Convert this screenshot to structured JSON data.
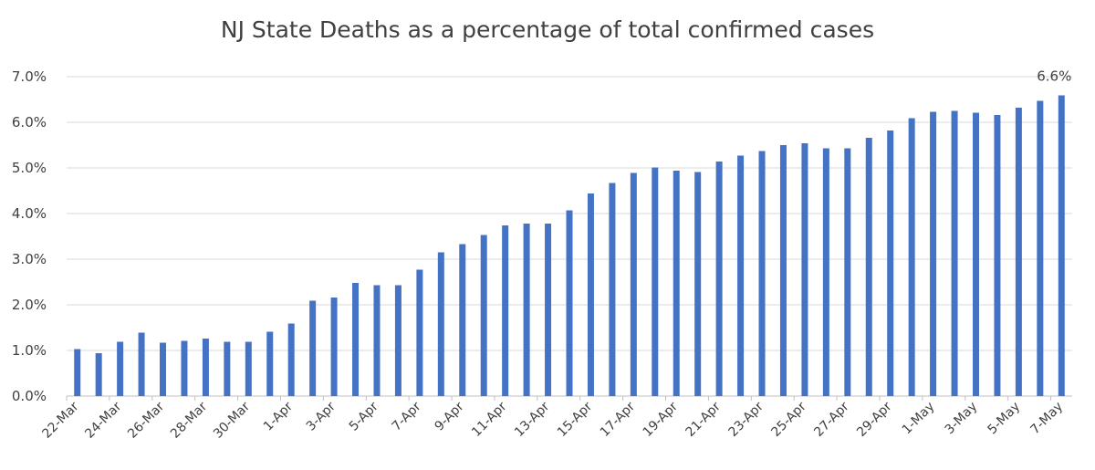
{
  "chart_data": {
    "type": "bar",
    "title": "NJ State Deaths as a percentage of total confirmed cases",
    "xlabel": "",
    "ylabel": "",
    "ylim": [
      0,
      7
    ],
    "yticks": [
      "0.0%",
      "1.0%",
      "2.0%",
      "3.0%",
      "4.0%",
      "5.0%",
      "6.0%",
      "7.0%"
    ],
    "grid": true,
    "bar_color": "#4472c4",
    "categories": [
      "22-Mar",
      "23-Mar",
      "24-Mar",
      "25-Mar",
      "26-Mar",
      "27-Mar",
      "28-Mar",
      "29-Mar",
      "30-Mar",
      "31-Mar",
      "1-Apr",
      "2-Apr",
      "3-Apr",
      "4-Apr",
      "5-Apr",
      "6-Apr",
      "7-Apr",
      "8-Apr",
      "9-Apr",
      "10-Apr",
      "11-Apr",
      "12-Apr",
      "13-Apr",
      "14-Apr",
      "15-Apr",
      "16-Apr",
      "17-Apr",
      "18-Apr",
      "19-Apr",
      "20-Apr",
      "21-Apr",
      "22-Apr",
      "23-Apr",
      "24-Apr",
      "25-Apr",
      "26-Apr",
      "27-Apr",
      "28-Apr",
      "29-Apr",
      "30-Apr",
      "1-May",
      "2-May",
      "3-May",
      "4-May",
      "5-May",
      "6-May",
      "7-May"
    ],
    "tick_labels": [
      "22-Mar",
      "24-Mar",
      "26-Mar",
      "28-Mar",
      "30-Mar",
      "1-Apr",
      "3-Apr",
      "5-Apr",
      "7-Apr",
      "9-Apr",
      "11-Apr",
      "13-Apr",
      "15-Apr",
      "17-Apr",
      "19-Apr",
      "21-Apr",
      "23-Apr",
      "25-Apr",
      "27-Apr",
      "29-Apr",
      "1-May",
      "3-May",
      "5-May",
      "7-May"
    ],
    "values": [
      1.03,
      0.94,
      1.19,
      1.39,
      1.17,
      1.21,
      1.26,
      1.19,
      1.19,
      1.41,
      1.59,
      2.09,
      2.16,
      2.48,
      2.43,
      2.43,
      2.77,
      3.15,
      3.33,
      3.53,
      3.74,
      3.78,
      3.78,
      4.07,
      4.44,
      4.67,
      4.89,
      5.01,
      4.94,
      4.91,
      5.14,
      5.27,
      5.37,
      5.5,
      5.54,
      5.43,
      5.43,
      5.66,
      5.82,
      6.09,
      6.23,
      6.25,
      6.21,
      6.16,
      6.32,
      6.47,
      6.59
    ],
    "annotations": [
      {
        "category": "7-May",
        "text": "6.6%"
      }
    ]
  }
}
